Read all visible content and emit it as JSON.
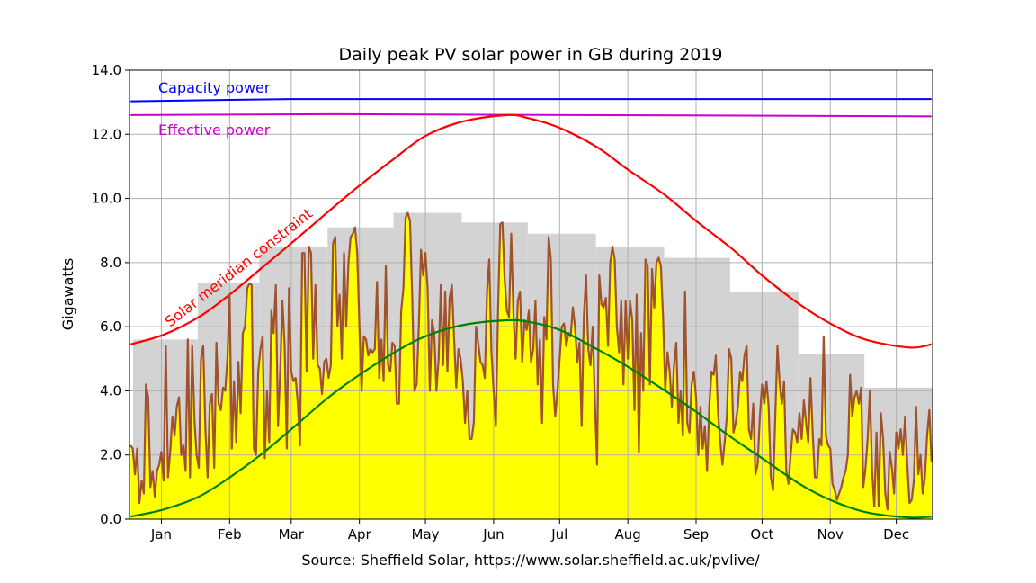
{
  "chart_data": {
    "type": "line",
    "title": "Daily peak PV solar power in GB during 2019",
    "xlabel": "Source: Sheffield Solar, https://www.solar.sheffield.ac.uk/pvlive/",
    "ylabel": "Gigawatts",
    "ylim": [
      0,
      14
    ],
    "yticks": [
      "0.0",
      "2.0",
      "4.0",
      "6.0",
      "8.0",
      "10.0",
      "12.0",
      "14.0"
    ],
    "xlim": [
      "2019-01-01",
      "2019-12-31"
    ],
    "xticks": [
      "Jan",
      "Feb",
      "Mar",
      "Apr",
      "May",
      "Jun",
      "Jul",
      "Aug",
      "Sep",
      "Oct",
      "Nov",
      "Dec"
    ],
    "grid": true,
    "colors": {
      "daily": "#a0522d",
      "daily_fill": "#ffff00",
      "monthly_max": "#d3d3d3",
      "capacity": "#0000ff",
      "effective": "#cc00cc",
      "meridian": "#ff0000",
      "low": "#008000"
    },
    "annotations": {
      "capacity": "Capacity power",
      "effective": "Effective power",
      "meridian": "Solar meridian constraint"
    },
    "daily_peak": {
      "start": "2019-01-01",
      "values": [
        2.3,
        2.2,
        1.4,
        2.2,
        0.5,
        1.2,
        0.8,
        4.2,
        3.8,
        1.0,
        1.5,
        0.7,
        1.5,
        1.7,
        2.1,
        1.2,
        5.4,
        1.3,
        2.1,
        3.2,
        2.6,
        3.5,
        3.8,
        2.0,
        2.3,
        1.5,
        5.6,
        1.3,
        5.4,
        3.1,
        2.0,
        1.6,
        5.0,
        5.4,
        2.8,
        1.3,
        3.6,
        3.9,
        1.6,
        5.5,
        3.6,
        3.4,
        4.1,
        4.0,
        5.0,
        7.0,
        2.2,
        4.3,
        2.4,
        4.9,
        3.3,
        5.8,
        6.0,
        7.2,
        7.35,
        7.3,
        2.2,
        2.0,
        4.6,
        5.3,
        5.7,
        1.9,
        4.0,
        2.4,
        6.5,
        5.8,
        7.3,
        2.9,
        4.6,
        6.8,
        5.4,
        2.2,
        7.2,
        4.6,
        4.3,
        4.4,
        3.6,
        2.3,
        8.3,
        8.3,
        4.6,
        8.5,
        8.3,
        5.0,
        7.3,
        4.8,
        4.7,
        3.9,
        4.9,
        5.0,
        4.4,
        4.8,
        8.6,
        8.8,
        6.0,
        7.0,
        5.0,
        8.3,
        6.0,
        8.0,
        8.8,
        8.9,
        9.1,
        8.3,
        6.0,
        4.0,
        5.7,
        5.6,
        5.1,
        5.3,
        5.2,
        5.3,
        7.4,
        4.4,
        5.6,
        4.3,
        7.9,
        4.8,
        4.6,
        5.5,
        5.4,
        3.6,
        3.6,
        6.5,
        7.2,
        9.4,
        9.55,
        9.3,
        6.9,
        4.0,
        4.2,
        6.0,
        8.4,
        7.6,
        8.3,
        7.2,
        4.0,
        6.2,
        5.8,
        4.0,
        5.0,
        7.3,
        4.8,
        7.1,
        4.6,
        6.9,
        7.3,
        5.7,
        4.1,
        5.3,
        5.0,
        4.3,
        3.0,
        4.0,
        2.5,
        2.5,
        3.0,
        6.0,
        5.5,
        4.9,
        4.8,
        4.4,
        7.1,
        8.1,
        5.2,
        4.0,
        2.9,
        6.5,
        9.2,
        9.25,
        7.5,
        6.5,
        6.3,
        8.9,
        6.4,
        5.0,
        6.8,
        7.1,
        4.9,
        6.2,
        5.9,
        6.5,
        4.9,
        5.3,
        6.8,
        4.2,
        5.6,
        3.0,
        6.3,
        5.6,
        8.8,
        8.1,
        4.2,
        3.2,
        4.0,
        5.0,
        6.0,
        6.1,
        5.4,
        5.8,
        5.7,
        6.6,
        6.0,
        4.9,
        5.5,
        2.9,
        6.3,
        7.6,
        5.3,
        4.8,
        6.0,
        3.7,
        1.7,
        7.6,
        6.7,
        6.6,
        6.9,
        5.4,
        8.0,
        8.5,
        8.1,
        6.0,
        5.2,
        6.8,
        4.2,
        6.8,
        5.0,
        6.8,
        6.2,
        3.4,
        7.0,
        2.1,
        5.8,
        4.0,
        8.1,
        7.9,
        4.2,
        7.8,
        6.6,
        8.0,
        8.15,
        7.9,
        6.3,
        4.0,
        5.2,
        4.6,
        3.5,
        4.8,
        5.5,
        3.0,
        4.0,
        2.6,
        7.1,
        3.0,
        2.7,
        4.2,
        4.6,
        3.8,
        2.0,
        3.5,
        2.2,
        2.9,
        1.5,
        3.5,
        4.6,
        4.5,
        5.1,
        3.3,
        2.4,
        1.7,
        2.4,
        3.2,
        5.3,
        5.0,
        2.7,
        3.0,
        3.5,
        4.6,
        4.3,
        5.1,
        5.4,
        2.8,
        2.5,
        3.6,
        1.4,
        1.7,
        3.2,
        4.2,
        3.6,
        4.3,
        3.5,
        1.3,
        0.9,
        3.2,
        5.4,
        4.2,
        3.6,
        4.3,
        1.5,
        1.1,
        2.0,
        2.8,
        2.7,
        2.4,
        3.3,
        2.5,
        3.7,
        3.0,
        2.4,
        4.4,
        2.7,
        1.3,
        1.3,
        2.5,
        2.3,
        5.7,
        2.6,
        2.3,
        2.2,
        1.1,
        0.9,
        0.6,
        0.8,
        1.0,
        1.3,
        1.5,
        2.0,
        4.5,
        3.2,
        3.8,
        4.0,
        3.6,
        4.1,
        1.0,
        1.6,
        2.5,
        4.0,
        1.5,
        0.4,
        2.7,
        0.4,
        3.3,
        2.5,
        0.8,
        0.3,
        2.1,
        1.6,
        0.8,
        2.7,
        2.2,
        2.8,
        2.0,
        3.2,
        1.7,
        0.5,
        0.6,
        1.2,
        3.5,
        1.4,
        2.0,
        0.8,
        1.3,
        2.6,
        3.4,
        1.8
      ]
    },
    "monthly_max": [
      5.6,
      7.35,
      8.5,
      9.1,
      9.55,
      9.25,
      8.9,
      8.5,
      8.15,
      7.1,
      5.15,
      4.1
    ],
    "capacity_power": [
      [
        "2019-01-01",
        13.03
      ],
      [
        "2019-03-15",
        13.1
      ],
      [
        "2019-12-31",
        13.1
      ]
    ],
    "effective_power": [
      [
        "2019-01-01",
        12.6
      ],
      [
        "2019-04-01",
        12.63
      ],
      [
        "2019-12-31",
        12.56
      ]
    ],
    "meridian_constraint": [
      [
        "2019-01-01",
        5.45
      ],
      [
        "2019-01-16",
        5.75
      ],
      [
        "2019-02-01",
        6.3
      ],
      [
        "2019-02-15",
        7.0
      ],
      [
        "2019-03-01",
        7.8
      ],
      [
        "2019-03-15",
        8.6
      ],
      [
        "2019-04-01",
        9.6
      ],
      [
        "2019-04-15",
        10.4
      ],
      [
        "2019-05-01",
        11.25
      ],
      [
        "2019-05-15",
        11.95
      ],
      [
        "2019-06-01",
        12.4
      ],
      [
        "2019-06-21",
        12.6
      ],
      [
        "2019-07-01",
        12.5
      ],
      [
        "2019-07-15",
        12.2
      ],
      [
        "2019-08-01",
        11.6
      ],
      [
        "2019-08-15",
        10.9
      ],
      [
        "2019-09-01",
        10.1
      ],
      [
        "2019-09-15",
        9.3
      ],
      [
        "2019-10-01",
        8.45
      ],
      [
        "2019-10-15",
        7.6
      ],
      [
        "2019-11-01",
        6.7
      ],
      [
        "2019-11-15",
        6.1
      ],
      [
        "2019-12-01",
        5.6
      ],
      [
        "2019-12-21",
        5.35
      ],
      [
        "2019-12-31",
        5.45
      ]
    ],
    "low_constraint": [
      [
        "2019-01-01",
        0.08
      ],
      [
        "2019-01-16",
        0.3
      ],
      [
        "2019-02-01",
        0.7
      ],
      [
        "2019-02-15",
        1.3
      ],
      [
        "2019-03-01",
        2.0
      ],
      [
        "2019-03-15",
        2.8
      ],
      [
        "2019-04-01",
        3.8
      ],
      [
        "2019-04-15",
        4.5
      ],
      [
        "2019-05-01",
        5.2
      ],
      [
        "2019-05-15",
        5.7
      ],
      [
        "2019-06-01",
        6.05
      ],
      [
        "2019-06-21",
        6.2
      ],
      [
        "2019-07-01",
        6.15
      ],
      [
        "2019-07-15",
        5.9
      ],
      [
        "2019-08-01",
        5.3
      ],
      [
        "2019-08-15",
        4.75
      ],
      [
        "2019-09-01",
        4.0
      ],
      [
        "2019-09-15",
        3.35
      ],
      [
        "2019-10-01",
        2.55
      ],
      [
        "2019-10-15",
        1.9
      ],
      [
        "2019-11-01",
        1.1
      ],
      [
        "2019-11-15",
        0.6
      ],
      [
        "2019-12-01",
        0.22
      ],
      [
        "2019-12-21",
        0.05
      ],
      [
        "2019-12-31",
        0.08
      ]
    ]
  }
}
